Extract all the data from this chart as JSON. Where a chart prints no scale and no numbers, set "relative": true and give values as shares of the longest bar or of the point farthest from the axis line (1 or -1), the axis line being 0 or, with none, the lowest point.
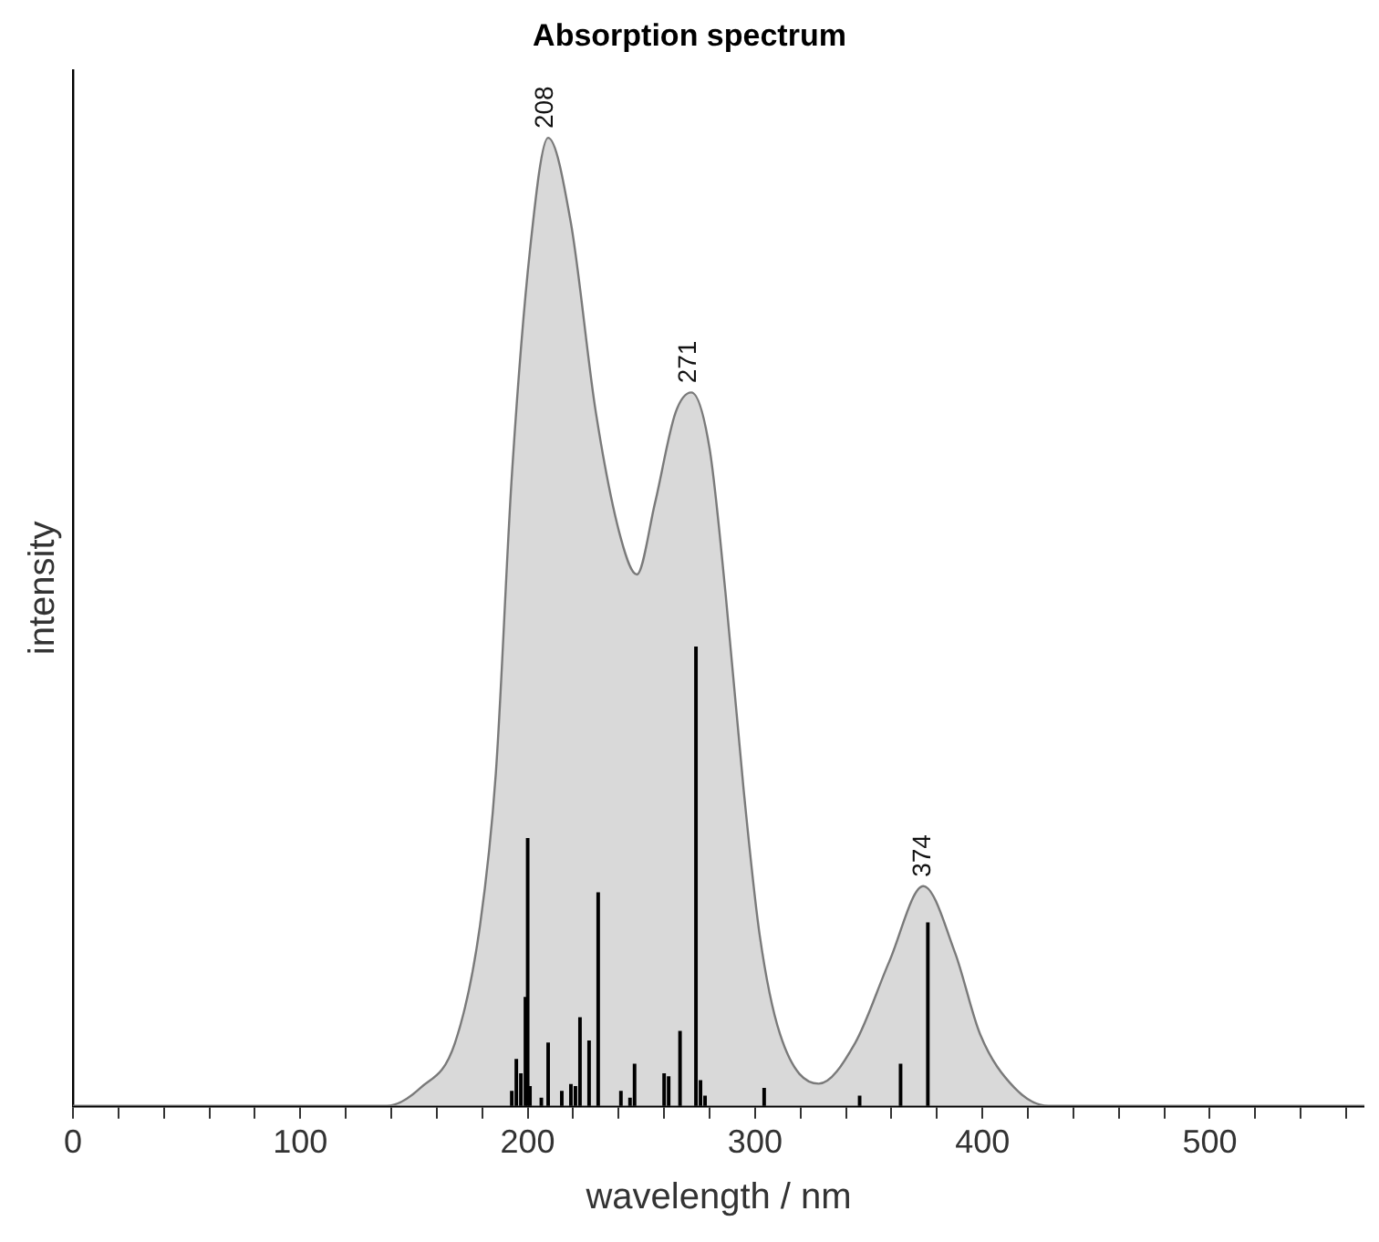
{
  "chart_data": {
    "type": "area",
    "title": "Absorption spectrum",
    "xlabel": "wavelength / nm",
    "ylabel": "intensity",
    "relative": true,
    "xlim": [
      0,
      568
    ],
    "xticks": [
      0,
      {
        "value": 20,
        "label": null
      },
      {
        "value": 40,
        "label": null
      },
      {
        "value": 60,
        "label": null
      },
      {
        "value": 80,
        "label": null
      },
      100,
      {
        "value": 120,
        "label": null
      },
      {
        "value": 140,
        "label": null
      },
      {
        "value": 160,
        "label": null
      },
      {
        "value": 180,
        "label": null
      },
      200,
      {
        "value": 220,
        "label": null
      },
      {
        "value": 240,
        "label": null
      },
      {
        "value": 260,
        "label": null
      },
      {
        "value": 280,
        "label": null
      },
      300,
      {
        "value": 320,
        "label": null
      },
      {
        "value": 340,
        "label": null
      },
      {
        "value": 360,
        "label": null
      },
      {
        "value": 380,
        "label": null
      },
      400,
      {
        "value": 420,
        "label": null
      },
      {
        "value": 440,
        "label": null
      },
      {
        "value": 460,
        "label": null
      },
      {
        "value": 480,
        "label": null
      },
      500,
      {
        "value": 520,
        "label": null
      },
      {
        "value": 540,
        "label": null
      },
      {
        "value": 560,
        "label": null
      }
    ],
    "tick_labels": "x",
    "grid": false,
    "legend": false,
    "marker": "none",
    "series": [
      {
        "color": "#d9d9d9",
        "x": [
          0,
          138,
          153,
          168,
          179,
          186,
          193,
          201,
          209,
          219,
          230,
          241,
          248,
          256,
          265,
          272,
          280,
          287,
          295,
          302,
          311,
          328,
          344,
          359,
          374,
          388,
          399,
          414,
          429,
          568
        ],
        "values": [
          0,
          0,
          0.019,
          0.065,
          0.186,
          0.344,
          0.65,
          0.884,
          1,
          0.912,
          0.716,
          0.586,
          0.549,
          0.623,
          0.716,
          0.737,
          0.679,
          0.53,
          0.326,
          0.177,
          0.074,
          0.023,
          0.065,
          0.149,
          0.227,
          0.158,
          0.074,
          0.019,
          0,
          0
        ]
      },
      {
        "type": "bar",
        "color": "#000000",
        "x": [
          193,
          195,
          197,
          199,
          200,
          201,
          206,
          209,
          215,
          219,
          221,
          223,
          227,
          231,
          241,
          245,
          247,
          260,
          262,
          267,
          274,
          276,
          278,
          304,
          346,
          364,
          376
        ],
        "values": [
          0.015,
          0.048,
          0.033,
          0.112,
          0.276,
          0.02,
          0.008,
          0.065,
          0.015,
          0.022,
          0.02,
          0.091,
          0.067,
          0.22,
          0.015,
          0.008,
          0.043,
          0.033,
          0.03,
          0.077,
          0.474,
          0.026,
          0.01,
          0.018,
          0.01,
          0.043,
          0.189
        ]
      }
    ],
    "annotations": [
      {
        "text": "208",
        "x": 208,
        "y": 1
      },
      {
        "text": "271",
        "x": 271,
        "y": 0.737
      },
      {
        "text": "374",
        "x": 374,
        "y": 0.227
      }
    ]
  }
}
